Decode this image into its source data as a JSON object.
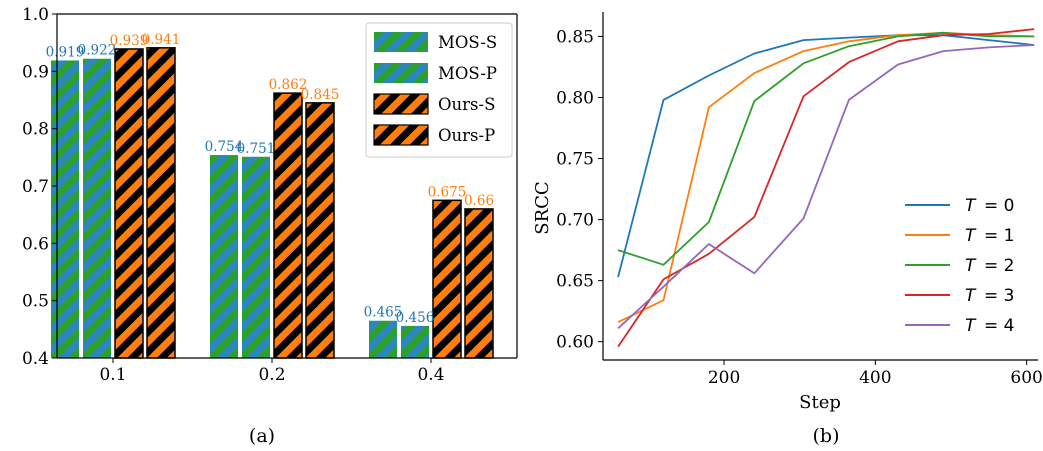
{
  "chart_data": [
    {
      "type": "bar",
      "caption": "(a)",
      "categories": [
        "0.1",
        "0.2",
        "0.4"
      ],
      "series": [
        {
          "name": "MOS-S",
          "values": [
            0.919,
            0.754,
            0.465
          ],
          "labels": [
            "0.919",
            "0.754",
            "0.465"
          ],
          "colors": [
            "#2e86c1",
            "#2ca02c"
          ],
          "label_color": "#1f77b4"
        },
        {
          "name": "MOS-P",
          "values": [
            0.922,
            0.751,
            0.456
          ],
          "labels": [
            "0.922",
            "0.751",
            "0.456"
          ],
          "colors": [
            "#2ca02c",
            "#2e86c1"
          ],
          "label_color": "#1f77b4"
        },
        {
          "name": "Ours-S",
          "values": [
            0.939,
            0.862,
            0.675
          ],
          "labels": [
            "0.939",
            "0.862",
            "0.675"
          ],
          "colors": [
            "#ff7f0e",
            "#000000"
          ],
          "label_color": "#ff7f0e"
        },
        {
          "name": "Ours-P",
          "values": [
            0.941,
            0.845,
            0.66
          ],
          "labels": [
            "0.941",
            "0.845",
            "0.66"
          ],
          "colors": [
            "#000000",
            "#ff7f0e"
          ],
          "label_color": "#ff7f0e"
        }
      ],
      "ylim": [
        0.4,
        1.0
      ],
      "yticks": [
        "0.4",
        "0.5",
        "0.6",
        "0.7",
        "0.8",
        "0.9",
        "1.0"
      ],
      "xlabel": "",
      "ylabel": "",
      "legend": "top-right"
    },
    {
      "type": "line",
      "caption": "(b)",
      "xlabel": "Step",
      "ylabel": "SRCC",
      "xlim": [
        40,
        615
      ],
      "ylim": [
        0.585,
        0.87
      ],
      "xticks": [
        "200",
        "400",
        "600"
      ],
      "yticks": [
        "0.60",
        "0.65",
        "0.70",
        "0.75",
        "0.80",
        "0.85"
      ],
      "legend": "lower-right",
      "series": [
        {
          "name": "T = 0",
          "var": "T",
          "eq": "= 0",
          "color": "#1f77b4",
          "x": [
            60,
            120,
            180,
            240,
            305,
            365,
            430,
            490,
            550,
            610
          ],
          "y": [
            0.653,
            0.798,
            0.818,
            0.836,
            0.847,
            0.849,
            0.851,
            0.851,
            0.847,
            0.843
          ]
        },
        {
          "name": "T = 1",
          "var": "T",
          "eq": "= 1",
          "color": "#ff7f0e",
          "x": [
            60,
            120,
            180,
            240,
            305,
            365,
            430,
            490,
            550,
            610
          ],
          "y": [
            0.616,
            0.634,
            0.792,
            0.82,
            0.838,
            0.846,
            0.851,
            0.853,
            0.851,
            0.85
          ]
        },
        {
          "name": "T = 2",
          "var": "T",
          "eq": "= 2",
          "color": "#2ca02c",
          "x": [
            60,
            120,
            180,
            240,
            305,
            365,
            430,
            490,
            550,
            610
          ],
          "y": [
            0.675,
            0.663,
            0.698,
            0.797,
            0.828,
            0.842,
            0.85,
            0.853,
            0.85,
            0.85
          ]
        },
        {
          "name": "T = 3",
          "var": "T",
          "eq": "= 3",
          "color": "#d62728",
          "x": [
            60,
            120,
            180,
            240,
            305,
            365,
            430,
            490,
            550,
            610
          ],
          "y": [
            0.596,
            0.651,
            0.672,
            0.702,
            0.801,
            0.829,
            0.846,
            0.851,
            0.852,
            0.856
          ]
        },
        {
          "name": "T = 4",
          "var": "T",
          "eq": "= 4",
          "color": "#9467bd",
          "x": [
            60,
            120,
            180,
            240,
            305,
            365,
            430,
            490,
            550,
            610
          ],
          "y": [
            0.611,
            0.645,
            0.68,
            0.656,
            0.701,
            0.798,
            0.827,
            0.838,
            0.841,
            0.843
          ]
        }
      ]
    }
  ]
}
